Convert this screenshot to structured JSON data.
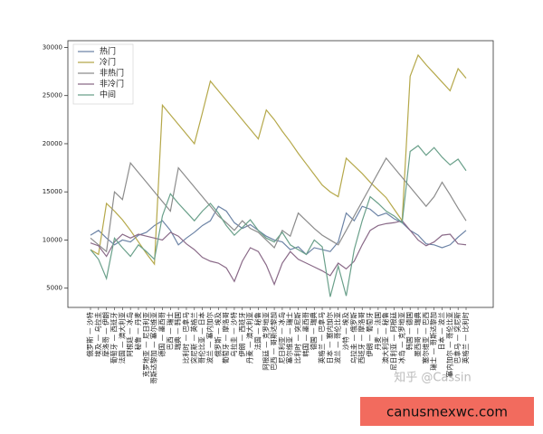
{
  "chart_data": {
    "type": "line",
    "categories": [
      "俄罗斯 — 沙特",
      "埃及 — 乌拉圭",
      "摩洛哥 — 伊朗",
      "葡萄牙 — 西班牙",
      "法国 — 澳大利亚",
      "阿根廷 — 冰岛",
      "秘鲁 — 丹麦",
      "克罗地亚 — 尼日利亚",
      "哥斯达黎加 — 塞尔维亚",
      "德国 — 墨西哥",
      "巴西 — 瑞士",
      "瑞典 — 韩国",
      "比利时 — 巴拿马",
      "突尼斯 — 英格兰",
      "哥伦比亚 — 日本",
      "波兰 — 塞内加尔",
      "俄罗斯 — 埃及",
      "葡萄牙 — 摩洛哥",
      "乌拉圭 — 沙特",
      "伊朗 — 西班牙",
      "丹麦 — 澳大利亚",
      "法国 — 秘鲁",
      "阿根廷 — 克罗地亚",
      "巴西 — 哥斯达黎加",
      "尼日利亚 — 冰岛",
      "塞尔维亚 — 瑞士",
      "比利时 — 突尼斯",
      "韩国 — 墨西哥",
      "德国 — 瑞典",
      "英格兰 — 巴拿马",
      "日本 — 塞内加尔",
      "波兰 — 哥伦比亚",
      "沙特 — 埃及",
      "乌拉圭 — 俄罗斯",
      "西班牙 — 摩洛哥",
      "伊朗 — 葡萄牙",
      "丹麦 — 法国",
      "澳大利亚 — 秘鲁",
      "尼日利亚 — 阿根廷",
      "冰岛 — 克罗地亚",
      "韩国 — 德国",
      "墨西哥 — 瑞典",
      "塞尔维亚 — 巴西",
      "瑞士 — 哥斯达黎加",
      "日本 — 波兰",
      "塞内加尔 — 哥伦比亚",
      "巴拿马 — 突尼斯",
      "英格兰 — 比利时"
    ],
    "series": [
      {
        "name": "热门",
        "color": "#6d84a6",
        "values": [
          10500,
          11000,
          10200,
          9500,
          10000,
          9800,
          10500,
          10800,
          11500,
          12000,
          11000,
          9500,
          10200,
          10800,
          11500,
          12000,
          13500,
          13000,
          11800,
          11200,
          11600,
          11000,
          10400,
          10000,
          9800,
          9000,
          9300,
          8500,
          9200,
          9000,
          8800,
          9800,
          12800,
          12000,
          13500,
          13200,
          12500,
          12800,
          12200,
          11800,
          11000,
          10500,
          9600,
          9500,
          9200,
          9500,
          10300,
          11000
        ]
      },
      {
        "name": "冷门",
        "color": "#b5a84a",
        "values": [
          9000,
          8500,
          13800,
          13000,
          12100,
          11000,
          9800,
          8600,
          7500,
          24000,
          23000,
          22000,
          21000,
          20000,
          23200,
          26500,
          25500,
          24500,
          23500,
          22500,
          21500,
          20500,
          23500,
          22500,
          21300,
          20200,
          19000,
          17900,
          16800,
          15700,
          15000,
          14500,
          18500,
          17700,
          16900,
          16000,
          15200,
          14400,
          13200,
          12000,
          27000,
          29200,
          28200,
          27300,
          26400,
          25500,
          27800,
          26800
        ]
      },
      {
        "name": "非热门",
        "color": "#8c8c8c",
        "values": [
          10200,
          9500,
          8800,
          15000,
          14200,
          18000,
          17000,
          16000,
          15000,
          14000,
          13000,
          17500,
          16500,
          15500,
          14500,
          13500,
          12500,
          11800,
          11000,
          12000,
          11200,
          10800,
          10000,
          9200,
          11000,
          10400,
          12800,
          12000,
          11200,
          10500,
          10000,
          9500,
          11000,
          12500,
          14000,
          15500,
          17000,
          18500,
          17500,
          16500,
          15500,
          14500,
          13500,
          14500,
          16000,
          14700,
          13300,
          12000
        ]
      },
      {
        "name": "非冷门",
        "color": "#8a6a88",
        "values": [
          9700,
          9400,
          8300,
          9800,
          10600,
          10200,
          10600,
          10400,
          10200,
          10000,
          10800,
          10400,
          9600,
          9000,
          8200,
          7800,
          7600,
          7100,
          5700,
          7800,
          9200,
          8800,
          7400,
          5400,
          7600,
          8800,
          8000,
          7600,
          7200,
          6800,
          6300,
          7600,
          7000,
          7800,
          9500,
          11000,
          11500,
          11700,
          11800,
          12000,
          11000,
          10000,
          9400,
          9800,
          10500,
          10600,
          9600,
          9500
        ]
      },
      {
        "name": "中间",
        "color": "#6aa08a",
        "values": [
          9000,
          8000,
          6000,
          10200,
          9200,
          8300,
          9500,
          8800,
          8000,
          12500,
          14800,
          13800,
          12900,
          12000,
          13000,
          13800,
          12800,
          11500,
          10500,
          11300,
          12100,
          11000,
          10200,
          9800,
          10800,
          9500,
          9000,
          8500,
          10000,
          9300,
          4100,
          7300,
          4200,
          9000,
          12000,
          14500,
          13800,
          13000,
          12500,
          11800,
          19200,
          19800,
          18800,
          19600,
          18600,
          17800,
          18400,
          17200
        ]
      }
    ],
    "ylim": [
      3000,
      30700
    ],
    "yticks": [
      5000,
      10000,
      15000,
      20000,
      25000,
      30000
    ],
    "legend": "upper left"
  },
  "watermark": "知乎 @Cassin",
  "banner": "canusmexwc.com"
}
